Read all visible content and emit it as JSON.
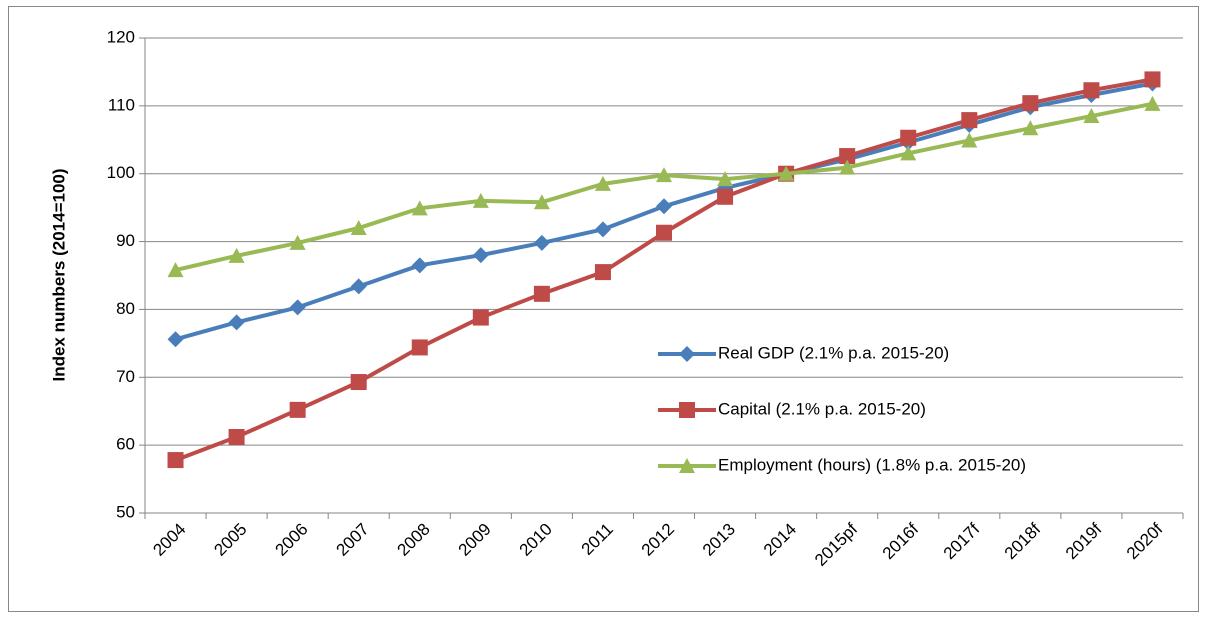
{
  "chart_data": {
    "type": "line",
    "y_label": "Index numbers (2014=100)",
    "categories": [
      "2004",
      "2005",
      "2006",
      "2007",
      "2008",
      "2009",
      "2010",
      "2011",
      "2012",
      "2013",
      "2014",
      "2015pf",
      "2016f",
      "2017f",
      "2018f",
      "2019f",
      "2020f"
    ],
    "series": [
      {
        "name": "Real GDP (2.1% p.a. 2015-20)",
        "color": "#4a7ebb",
        "marker": "diamond",
        "values": [
          75.6,
          78.1,
          80.3,
          83.4,
          86.5,
          88.0,
          89.8,
          91.8,
          95.2,
          97.9,
          100,
          102.1,
          104.6,
          107.2,
          109.8,
          111.6,
          113.3
        ]
      },
      {
        "name": "Capital (2.1% p.a. 2015-20)",
        "color": "#be4b48",
        "marker": "square",
        "values": [
          57.8,
          61.2,
          65.2,
          69.3,
          74.4,
          78.8,
          82.3,
          85.5,
          91.3,
          96.6,
          100,
          102.6,
          105.3,
          107.9,
          110.4,
          112.3,
          113.9
        ]
      },
      {
        "name": "Employment (hours) (1.8% p.a. 2015-20)",
        "color": "#98b954",
        "marker": "triangle",
        "values": [
          85.8,
          87.9,
          89.8,
          92.0,
          94.9,
          96.0,
          95.8,
          98.5,
          99.8,
          99.2,
          100,
          100.9,
          103.0,
          104.9,
          106.7,
          108.5,
          110.3
        ]
      }
    ],
    "ylim": [
      50,
      120
    ],
    "yticks": [
      50,
      60,
      70,
      80,
      90,
      100,
      110,
      120
    ],
    "grid": true
  }
}
